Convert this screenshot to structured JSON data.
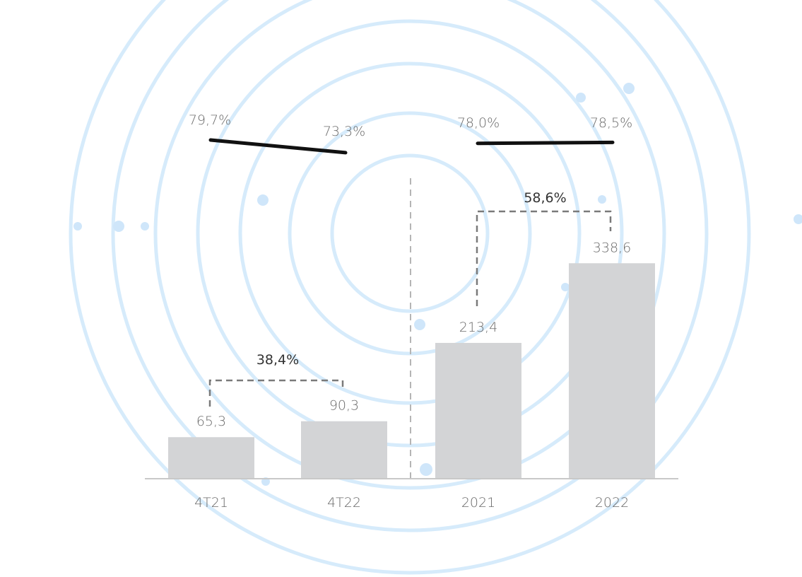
{
  "chart_data": {
    "type": "bar",
    "categories": [
      "4T21",
      "4T22",
      "2021",
      "2022"
    ],
    "values": [
      65.3,
      90.3,
      213.4,
      338.6
    ],
    "value_labels": [
      "65,3",
      "90,3",
      "213,4",
      "338,6"
    ],
    "ylim": [
      0,
      400
    ],
    "groups": [
      {
        "categories": [
          "4T21",
          "4T22"
        ],
        "growth_label": "38,4%"
      },
      {
        "categories": [
          "2021",
          "2022"
        ],
        "growth_label": "58,6%"
      }
    ],
    "line_series": [
      {
        "group": 0,
        "values": [
          79.7,
          73.3
        ],
        "labels": [
          "79,7%",
          "73,3%"
        ]
      },
      {
        "group": 1,
        "values": [
          78.0,
          78.5
        ],
        "labels": [
          "78,0%",
          "78,5%"
        ]
      }
    ],
    "title": "",
    "xlabel": "",
    "ylabel": "",
    "grid": false,
    "legend": "none",
    "colors": {
      "bar": "#d3d4d6",
      "line": "#111111",
      "bracket": "#7a7a7a",
      "divider": "#b5b5b5",
      "baseline": "#c8c8c8",
      "background_arcs": "#d6ebfb"
    }
  }
}
